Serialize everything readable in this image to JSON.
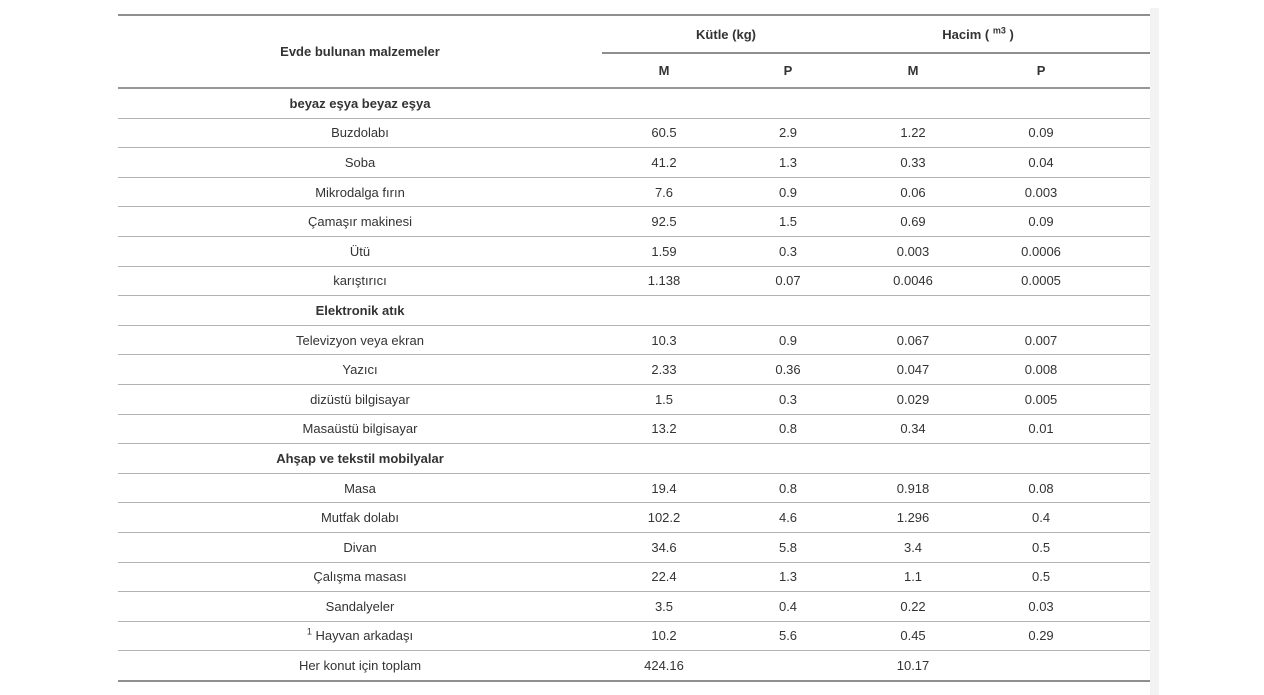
{
  "table": {
    "col1_header": "Evde bulunan malzemeler",
    "kutle_header": "Kütle (kg)",
    "hacim_prefix": "Hacim ( ",
    "hacim_sup": "m3",
    "hacim_suffix": " )",
    "sub_headers": [
      "M",
      "P",
      "M",
      "P"
    ],
    "sections": [
      {
        "title": "beyaz eşya beyaz eşya",
        "rows": [
          {
            "label": "Buzdolabı",
            "values": [
              "60.5",
              "2.9",
              "1.22",
              "0.09"
            ]
          },
          {
            "label": "Soba",
            "values": [
              "41.2",
              "1.3",
              "0.33",
              "0.04"
            ]
          },
          {
            "label": "Mikrodalga fırın",
            "values": [
              "7.6",
              "0.9",
              "0.06",
              "0.003"
            ]
          },
          {
            "label": "Çamaşır makinesi",
            "values": [
              "92.5",
              "1.5",
              "0.69",
              "0.09"
            ]
          },
          {
            "label": "Ütü",
            "values": [
              "1.59",
              "0.3",
              "0.003",
              "0.0006"
            ]
          },
          {
            "label": "karıştırıcı",
            "values": [
              "1.138",
              "0.07",
              "0.0046",
              "0.0005"
            ]
          }
        ]
      },
      {
        "title": "Elektronik atık",
        "rows": [
          {
            "label": "Televizyon veya ekran",
            "values": [
              "10.3",
              "0.9",
              "0.067",
              "0.007"
            ]
          },
          {
            "label": "Yazıcı",
            "values": [
              "2.33",
              "0.36",
              "0.047",
              "0.008"
            ]
          },
          {
            "label": "dizüstü bilgisayar",
            "values": [
              "1.5",
              "0.3",
              "0.029",
              "0.005"
            ]
          },
          {
            "label": "Masaüstü bilgisayar",
            "values": [
              "13.2",
              "0.8",
              "0.34",
              "0.01"
            ]
          }
        ]
      },
      {
        "title": "Ahşap ve tekstil mobilyalar",
        "rows": [
          {
            "label": "Masa",
            "values": [
              "19.4",
              "0.8",
              "0.918",
              "0.08"
            ]
          },
          {
            "label": "Mutfak dolabı",
            "values": [
              "102.2",
              "4.6",
              "1.296",
              "0.4"
            ]
          },
          {
            "label": "Divan",
            "values": [
              "34.6",
              "5.8",
              "3.4",
              "0.5"
            ]
          },
          {
            "label": "Çalışma masası",
            "values": [
              "22.4",
              "1.3",
              "1.1",
              "0.5"
            ]
          },
          {
            "label": "Sandalyeler",
            "values": [
              "3.5",
              "0.4",
              "0.22",
              "0.03"
            ]
          },
          {
            "label": "Hayvan arkadaşı",
            "sup": "1",
            "values": [
              "10.2",
              "5.6",
              "0.45",
              "0.29"
            ]
          }
        ]
      }
    ],
    "total_row": {
      "label": "Her konut için toplam",
      "values": [
        "424.16",
        "",
        "10.17",
        ""
      ]
    }
  }
}
